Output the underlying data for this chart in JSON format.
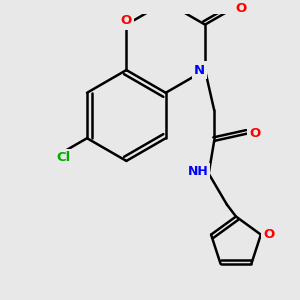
{
  "bg_color": "#e8e8e8",
  "bond_color": "#000000",
  "bond_width": 1.8,
  "atom_colors": {
    "O": "#ff0000",
    "N": "#0000ff",
    "Cl": "#00aa00",
    "C": "#000000",
    "H": "#606060"
  },
  "font_size": 9.5,
  "figsize": [
    3.0,
    3.0
  ],
  "dpi": 100
}
